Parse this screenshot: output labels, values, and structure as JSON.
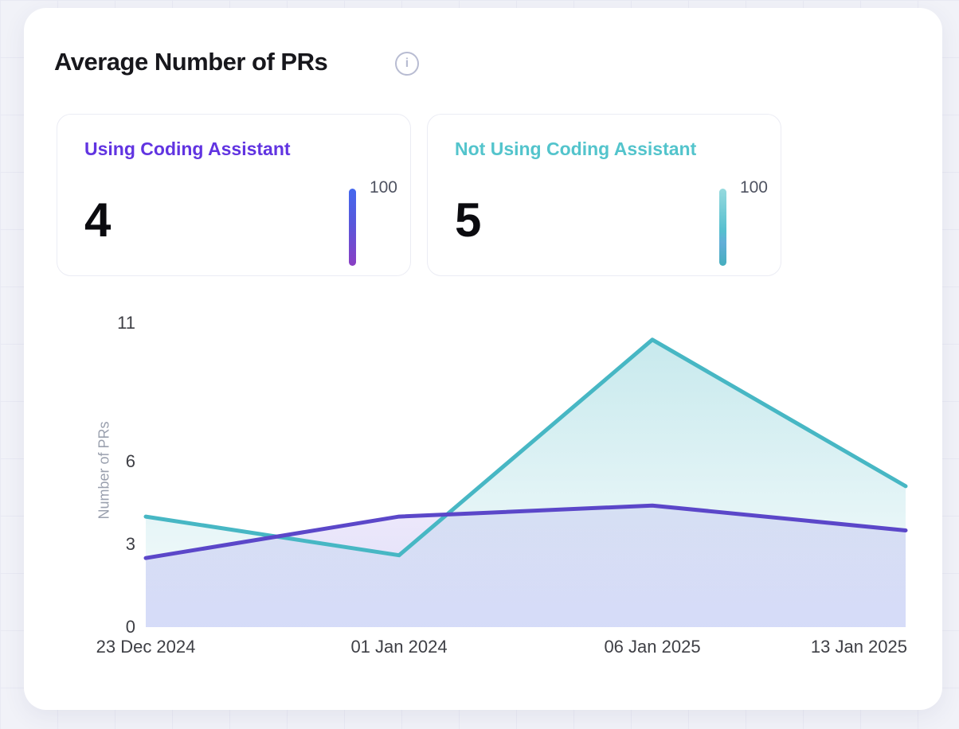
{
  "header": {
    "title": "Average Number of PRs",
    "info_icon_glyph": "i"
  },
  "stats": [
    {
      "label": "Using Coding Assistant",
      "value": "4",
      "scale_max": "100",
      "accent_color": "#6134e1",
      "bar_gradient": [
        "#4468ee",
        "#8a3fc4"
      ]
    },
    {
      "label": "Not Using Coding Assistant",
      "value": "5",
      "scale_max": "100",
      "accent_color": "#53c4cc",
      "bar_gradient": [
        "#96dade",
        "#45aebe"
      ]
    }
  ],
  "chart_data": {
    "type": "area",
    "x": [
      "23 Dec 2024",
      "01 Jan 2024",
      "06 Jan 2025",
      "13 Jan 2025"
    ],
    "series": [
      {
        "name": "Using Coding Assistant",
        "color": "#5b47c9",
        "values": [
          2.5,
          4.0,
          4.4,
          3.5
        ]
      },
      {
        "name": "Not Using Coding Assistant",
        "color": "#47b7c4",
        "values": [
          4.0,
          2.6,
          10.4,
          5.1
        ]
      }
    ],
    "title": "Average Number of PRs",
    "xlabel": "",
    "ylabel": "Number of PRs",
    "yticks": [
      0,
      3,
      6,
      11
    ],
    "ylim": [
      0,
      11
    ],
    "grid": false,
    "legend_position": "none"
  }
}
